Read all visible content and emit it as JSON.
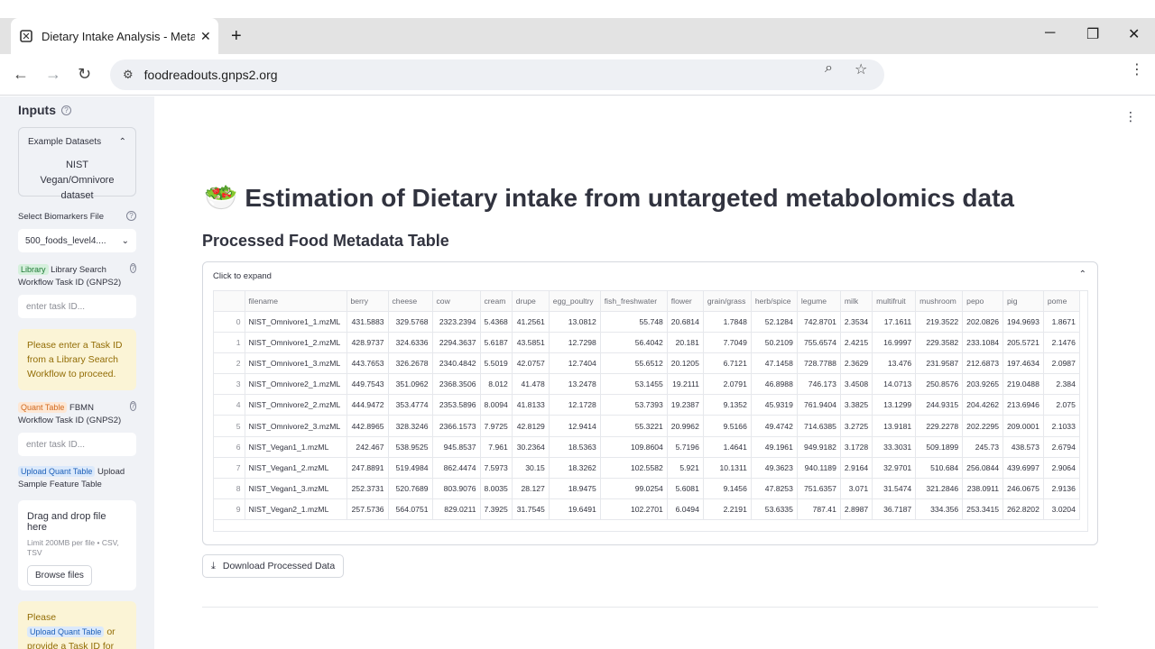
{
  "browser": {
    "tab_title": "Dietary Intake Analysis - Metab",
    "url": "foodreadouts.gnps2.org"
  },
  "sidebar": {
    "heading": "Inputs",
    "example_datasets": {
      "label": "Example Datasets",
      "value": "NIST Vegan/Omnivore dataset"
    },
    "biomarkers": {
      "label": "Select Biomarkers File",
      "value": "500_foods_level4...."
    },
    "library": {
      "badge": "Library",
      "label": "Library Search Workflow Task ID (GNPS2)",
      "placeholder": "enter task ID..."
    },
    "warning1": "Please enter a Task ID from a Library Search Workflow to proceed.",
    "quant": {
      "badge": "Quant Table",
      "label": "FBMN Workflow Task ID (GNPS2)",
      "placeholder": "enter task ID..."
    },
    "upload": {
      "badge": "Upload Quant Table",
      "label": "Upload Sample Feature Table"
    },
    "dropzone": {
      "title": "Drag and drop file here",
      "sub": "Limit 200MB per file • CSV, TSV",
      "browse": "Browse files"
    },
    "warning2": {
      "prefix": "Please",
      "badge": "Upload Quant Table",
      "suffix": "or provide a Task ID for"
    }
  },
  "main": {
    "title": "Estimation of Dietary intake from untargeted metabolomics data",
    "subtitle": "Processed Food Metadata Table",
    "expander_label": "Click to expand",
    "download_label": "Download Processed Data"
  },
  "table": {
    "columns": [
      "",
      "filename",
      "berry",
      "cheese",
      "cow",
      "cream",
      "drupe",
      "egg_poultry",
      "fish_freshwater",
      "flower",
      "grain/grass",
      "herb/spice",
      "legume",
      "milk",
      "multifruit",
      "mushroom",
      "pepo",
      "pig",
      "pome"
    ],
    "rows": [
      [
        "0",
        "NIST_Omnivore1_1.mzML",
        "431.5883",
        "329.5768",
        "2323.2394",
        "5.4368",
        "41.2561",
        "13.0812",
        "55.748",
        "20.6814",
        "1.7848",
        "52.1284",
        "742.8701",
        "2.3534",
        "17.1611",
        "219.3522",
        "202.0826",
        "194.9693",
        "1.8671"
      ],
      [
        "1",
        "NIST_Omnivore1_2.mzML",
        "428.9737",
        "324.6336",
        "2294.3637",
        "5.6187",
        "43.5851",
        "12.7298",
        "56.4042",
        "20.181",
        "7.7049",
        "50.2109",
        "755.6574",
        "2.4215",
        "16.9997",
        "229.3582",
        "233.1084",
        "205.5721",
        "2.1476"
      ],
      [
        "2",
        "NIST_Omnivore1_3.mzML",
        "443.7653",
        "326.2678",
        "2340.4842",
        "5.5019",
        "42.0757",
        "12.7404",
        "55.6512",
        "20.1205",
        "6.7121",
        "47.1458",
        "728.7788",
        "2.3629",
        "13.476",
        "231.9587",
        "212.6873",
        "197.4634",
        "2.0987"
      ],
      [
        "3",
        "NIST_Omnivore2_1.mzML",
        "449.7543",
        "351.0962",
        "2368.3506",
        "8.012",
        "41.478",
        "13.2478",
        "53.1455",
        "19.2111",
        "2.0791",
        "46.8988",
        "746.173",
        "3.4508",
        "14.0713",
        "250.8576",
        "203.9265",
        "219.0488",
        "2.384"
      ],
      [
        "4",
        "NIST_Omnivore2_2.mzML",
        "444.9472",
        "353.4774",
        "2353.5896",
        "8.0094",
        "41.8133",
        "12.1728",
        "53.7393",
        "19.2387",
        "9.1352",
        "45.9319",
        "761.9404",
        "3.3825",
        "13.1299",
        "244.9315",
        "204.4262",
        "213.6946",
        "2.075"
      ],
      [
        "5",
        "NIST_Omnivore2_3.mzML",
        "442.8965",
        "328.3246",
        "2366.1573",
        "7.9725",
        "42.8129",
        "12.9414",
        "55.3221",
        "20.9962",
        "9.5166",
        "49.4742",
        "714.6385",
        "3.2725",
        "13.9181",
        "229.2278",
        "202.2295",
        "209.0001",
        "2.1033"
      ],
      [
        "6",
        "NIST_Vegan1_1.mzML",
        "242.467",
        "538.9525",
        "945.8537",
        "7.961",
        "30.2364",
        "18.5363",
        "109.8604",
        "5.7196",
        "1.4641",
        "49.1961",
        "949.9182",
        "3.1728",
        "33.3031",
        "509.1899",
        "245.73",
        "438.573",
        "2.6794"
      ],
      [
        "7",
        "NIST_Vegan1_2.mzML",
        "247.8891",
        "519.4984",
        "862.4474",
        "7.5973",
        "30.15",
        "18.3262",
        "102.5582",
        "5.921",
        "10.1311",
        "49.3623",
        "940.1189",
        "2.9164",
        "32.9701",
        "510.684",
        "256.0844",
        "439.6997",
        "2.9064"
      ],
      [
        "8",
        "NIST_Vegan1_3.mzML",
        "252.3731",
        "520.7689",
        "803.9076",
        "8.0035",
        "28.127",
        "18.9475",
        "99.0254",
        "5.6081",
        "9.1456",
        "47.8253",
        "751.6357",
        "3.071",
        "31.5474",
        "321.2846",
        "238.0911",
        "246.0675",
        "2.9136"
      ],
      [
        "9",
        "NIST_Vegan2_1.mzML",
        "257.5736",
        "564.0751",
        "829.0211",
        "7.3925",
        "31.7545",
        "19.6491",
        "102.2701",
        "6.0494",
        "2.2191",
        "53.6335",
        "787.41",
        "2.8987",
        "36.7187",
        "334.356",
        "253.3415",
        "262.8202",
        "3.0204"
      ]
    ]
  }
}
